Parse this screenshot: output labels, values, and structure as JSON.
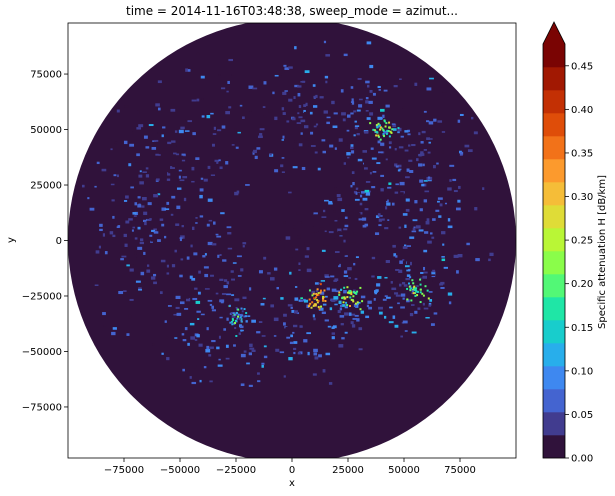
{
  "chart_data": {
    "type": "heatmap",
    "title": "time = 2014-11-16T03:48:38, sweep_mode = azimut...",
    "xlabel": "x",
    "ylabel": "y",
    "xlim": [
      -100000,
      100000
    ],
    "ylim": [
      -98000,
      98000
    ],
    "x_ticks": [
      -75000,
      -50000,
      -25000,
      0,
      25000,
      50000,
      75000
    ],
    "x_tick_labels": [
      "−75000",
      "−50000",
      "−25000",
      "0",
      "25000",
      "50000",
      "75000"
    ],
    "y_ticks": [
      -75000,
      -50000,
      -25000,
      0,
      25000,
      50000,
      75000
    ],
    "y_tick_labels": [
      "−75000",
      "−50000",
      "−25000",
      "0",
      "25000",
      "50000",
      "75000"
    ],
    "radar_range": 100000,
    "colorbar": {
      "label": "Specific attenuation H [dB/km]",
      "min": 0.0,
      "max": 0.475,
      "extend": "max",
      "ticks": [
        0.0,
        0.05,
        0.1,
        0.15,
        0.2,
        0.25,
        0.3,
        0.35,
        0.4,
        0.45
      ],
      "tick_labels": [
        "0.00",
        "0.05",
        "0.10",
        "0.15",
        "0.20",
        "0.25",
        "0.30",
        "0.35",
        "0.40",
        "0.45"
      ],
      "colors": [
        "#30123b",
        "#413c8f",
        "#4464d0",
        "#3e88f0",
        "#28aeeb",
        "#18cdcc",
        "#1fe6a6",
        "#52f876",
        "#8afd4a",
        "#b9f636",
        "#dfdc37",
        "#f5bd38",
        "#fc9a2d",
        "#f27219",
        "#df4d09",
        "#c33004",
        "#a11802",
        "#7a0403"
      ],
      "extend_color": "#7a0403"
    },
    "features": [
      {
        "x": -55000,
        "y": 35000,
        "sx": 16000,
        "sy": 22000,
        "value": 0.04
      },
      {
        "x": -40000,
        "y": -20000,
        "sx": 15000,
        "sy": 18000,
        "value": 0.05
      },
      {
        "x": -30000,
        "y": -45000,
        "sx": 14000,
        "sy": 8000,
        "value": 0.06
      },
      {
        "x": 0,
        "y": -48000,
        "sx": 11000,
        "sy": 8000,
        "value": 0.05
      },
      {
        "x": 15000,
        "y": -30000,
        "sx": 17000,
        "sy": 9000,
        "value": 0.07
      },
      {
        "x": 35000,
        "y": -25000,
        "sx": 16000,
        "sy": 9000,
        "value": 0.07
      },
      {
        "x": 55000,
        "y": -15000,
        "sx": 14000,
        "sy": 12000,
        "value": 0.05
      },
      {
        "x": 40000,
        "y": 45000,
        "sx": 18000,
        "sy": 14000,
        "value": 0.06
      },
      {
        "x": 55000,
        "y": 25000,
        "sx": 15000,
        "sy": 18000,
        "value": 0.05
      },
      {
        "x": -15000,
        "y": 55000,
        "sx": 14000,
        "sy": 12000,
        "value": 0.04
      },
      {
        "x": 15000,
        "y": 65000,
        "sx": 15000,
        "sy": 10000,
        "value": 0.04
      },
      {
        "x": -70000,
        "y": 5000,
        "sx": 10000,
        "sy": 15000,
        "value": 0.04
      },
      {
        "x": -80000,
        "y": -35000,
        "sx": 4000,
        "sy": 3000,
        "value": 0.05
      },
      {
        "x": 10000,
        "y": 0,
        "sx": 9000,
        "sy": 9000,
        "value": 0.02
      },
      {
        "x": 28000,
        "y": 15000,
        "sx": 10000,
        "sy": 12000,
        "value": 0.03
      }
    ],
    "hotspots": [
      {
        "x": 10000,
        "y": -26000,
        "value": 0.3
      },
      {
        "x": 25000,
        "y": -25000,
        "value": 0.22
      },
      {
        "x": 40000,
        "y": 50000,
        "value": 0.2
      },
      {
        "x": -25000,
        "y": -35000,
        "value": 0.12
      },
      {
        "x": 55000,
        "y": -22000,
        "value": 0.18
      }
    ]
  }
}
